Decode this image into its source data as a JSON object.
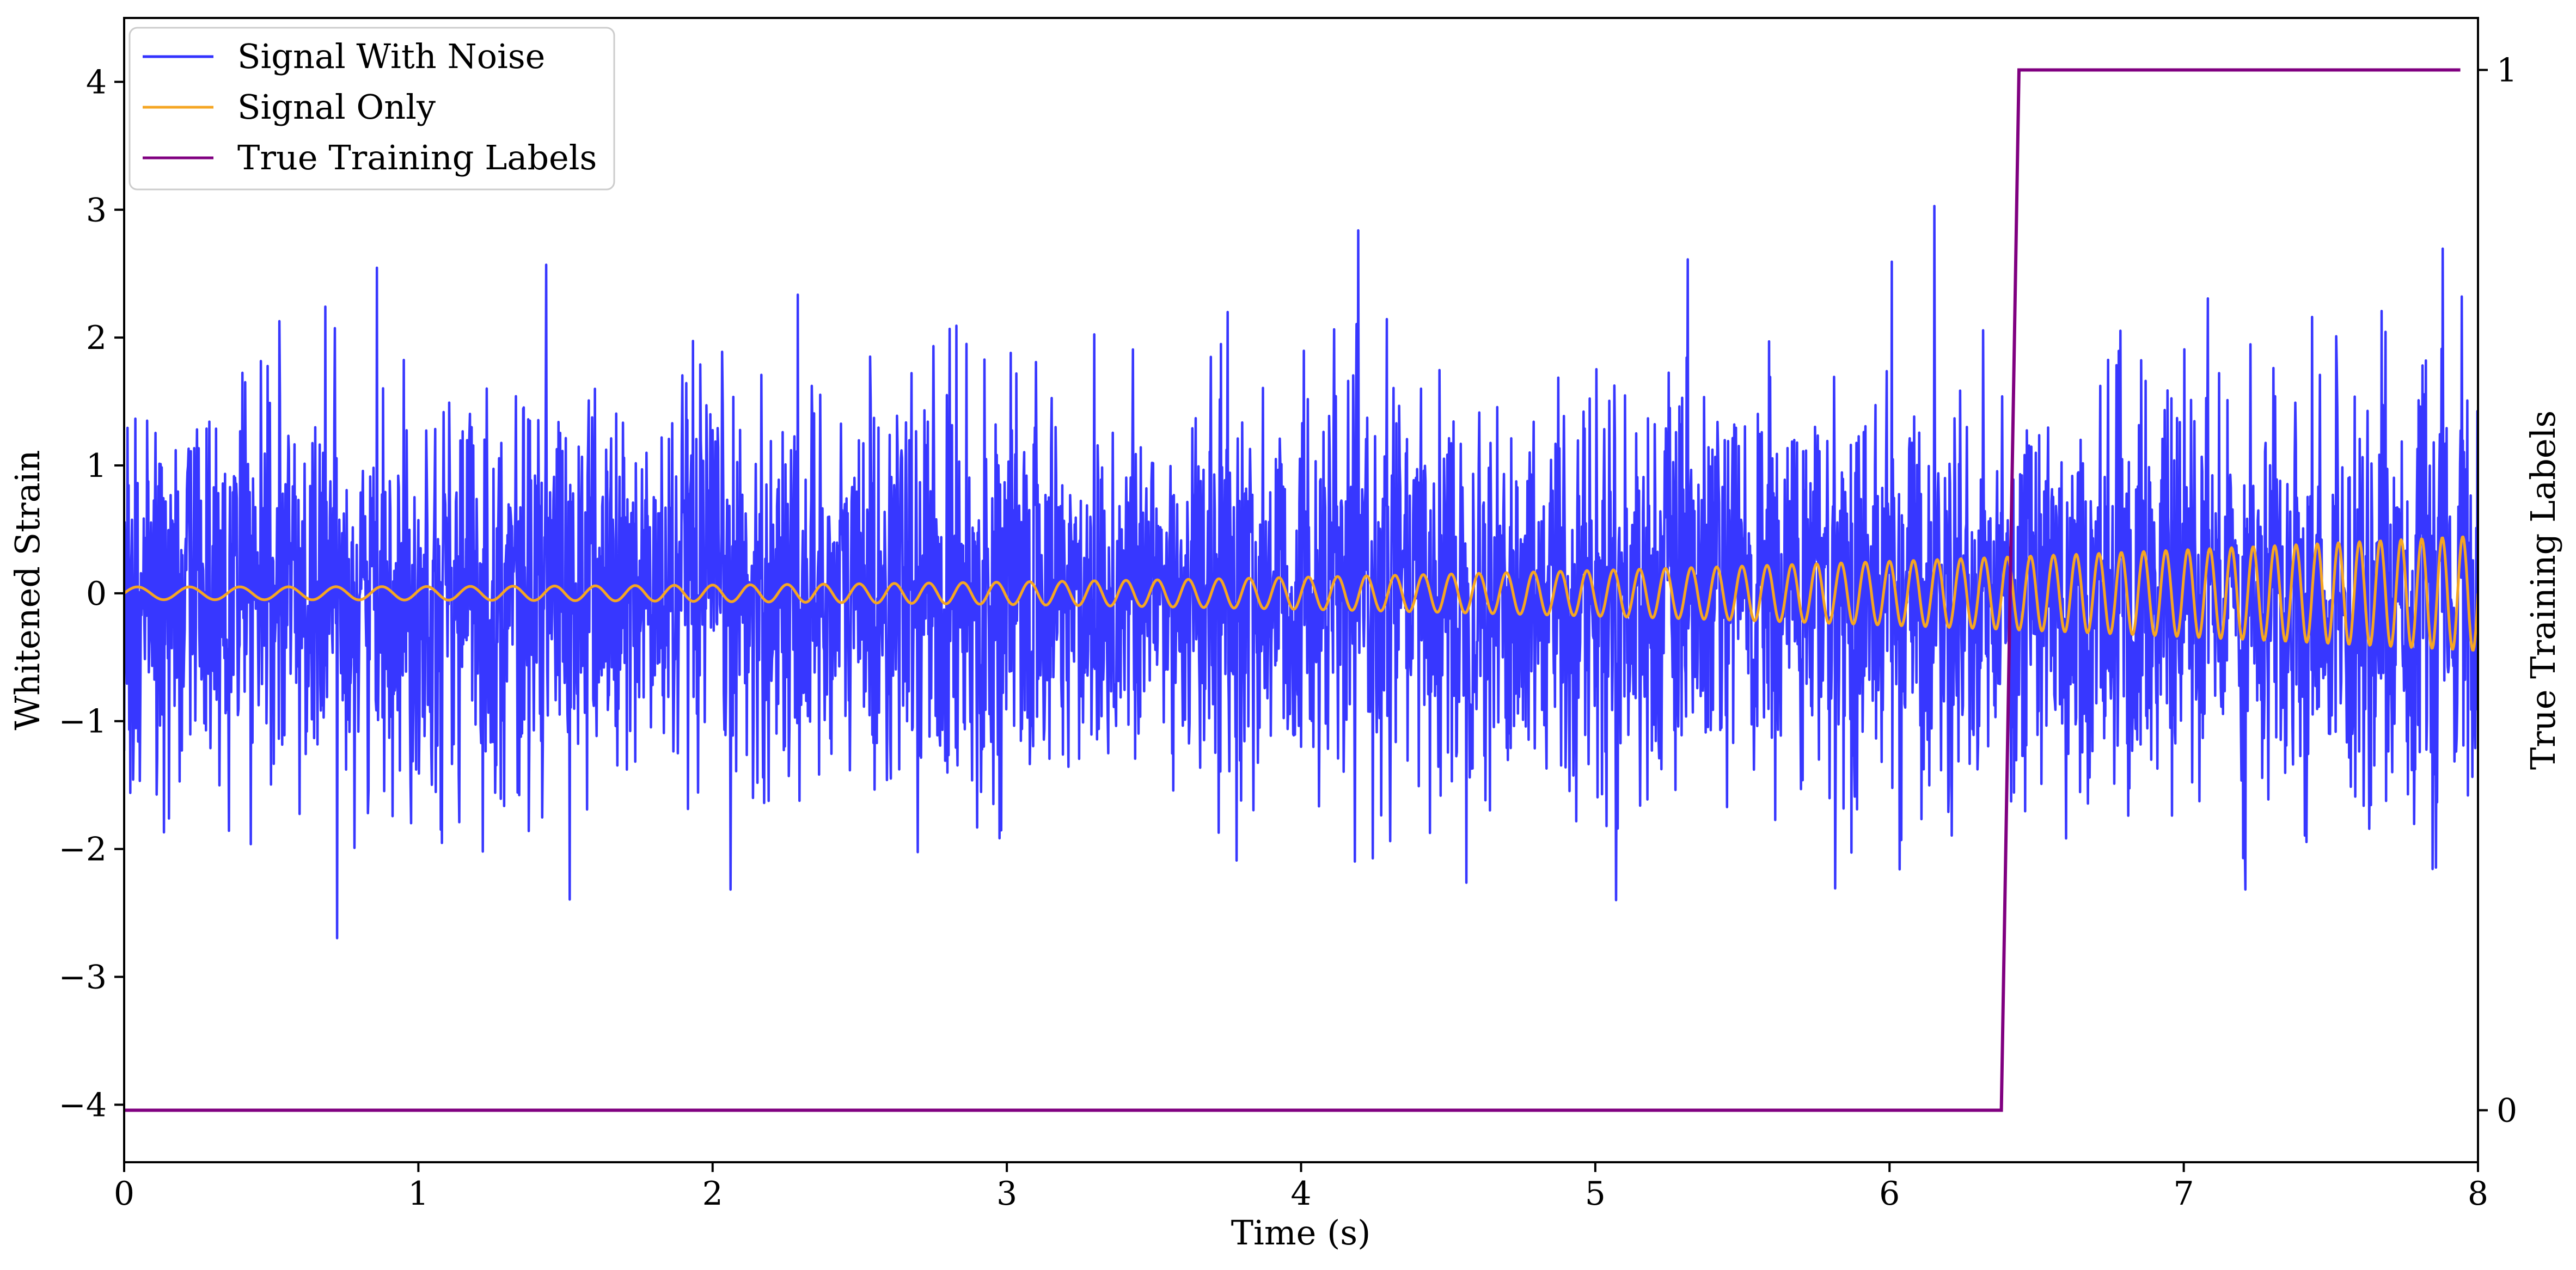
{
  "chart_data": {
    "type": "line",
    "title": "",
    "xlabel": "Time (s)",
    "ylabel": "Whitened Strain",
    "y2label": "True Training Labels",
    "xlim": [
      0,
      8
    ],
    "ylim": [
      -4.45,
      4.5
    ],
    "y2lim": [
      -0.05,
      1.05
    ],
    "xticks": [
      0,
      1,
      2,
      3,
      4,
      5,
      6,
      7,
      8
    ],
    "xtick_labels": [
      "0",
      "1",
      "2",
      "3",
      "4",
      "5",
      "6",
      "7",
      "8"
    ],
    "yticks": [
      -4,
      -3,
      -2,
      -1,
      0,
      1,
      2,
      3,
      4
    ],
    "ytick_labels": [
      "−4",
      "−3",
      "−2",
      "−1",
      "0",
      "1",
      "2",
      "3",
      "4"
    ],
    "y2ticks": [
      0,
      1
    ],
    "y2tick_labels": [
      "0",
      "1"
    ],
    "legend_position": "top-left",
    "grid": false,
    "series": [
      {
        "name": "Signal With Noise",
        "color": "#3333ff",
        "axis": "left",
        "description_kind": "noise",
        "noise_std": 0.75,
        "noise_clip_range": [
          -4.05,
          3.7
        ]
      },
      {
        "name": "Signal Only",
        "color": "#f5a623",
        "axis": "left",
        "description_kind": "chirp",
        "chirp_amplitude_start": 0.05,
        "chirp_amplitude_end": 0.45,
        "chirp_freq_start_hz": 5.5,
        "chirp_freq_end_hz": 14.5
      },
      {
        "name": "True Training Labels",
        "color": "#800080",
        "axis": "right",
        "x": [
          0,
          6.38,
          6.44,
          7.94
        ],
        "y": [
          0,
          0,
          1,
          1
        ]
      }
    ]
  }
}
